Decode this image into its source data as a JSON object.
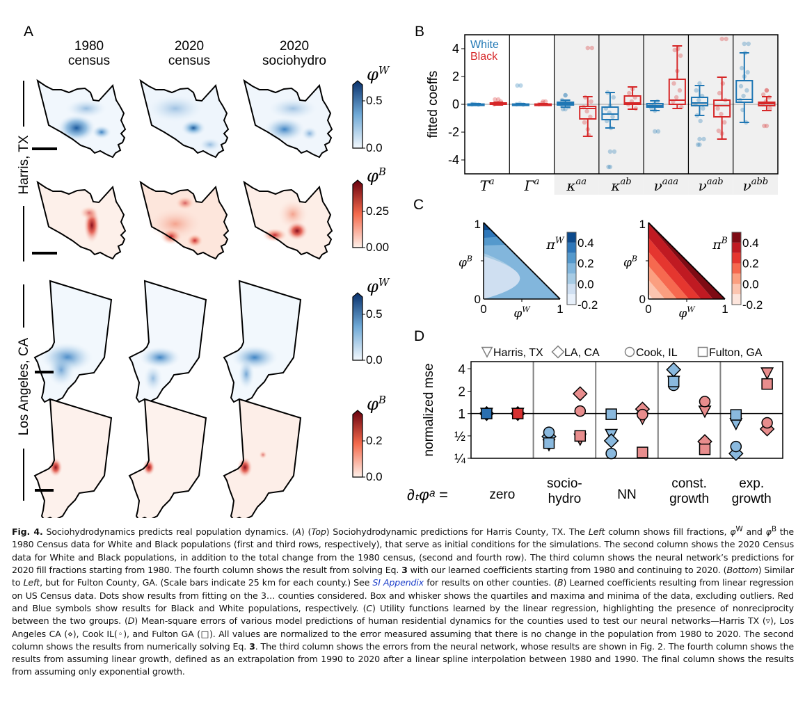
{
  "figure": {
    "panel_a": {
      "letter": "A",
      "column_titles": [
        {
          "line1": "1980",
          "line2": "census"
        },
        {
          "line1": "2020",
          "line2": "census"
        },
        {
          "line1": "2020",
          "line2": "sociohydro"
        }
      ],
      "row_groups": [
        {
          "label": "Harris, TX"
        },
        {
          "label": "Los Angeles, CA"
        }
      ],
      "colorbars": [
        {
          "symbol": "φ",
          "superscript": "W",
          "ticks": [
            "0.5",
            "0.0"
          ],
          "colormap": "Blues",
          "range": [
            0.0,
            0.7
          ]
        },
        {
          "symbol": "φ",
          "superscript": "B",
          "ticks": [
            "0.25",
            "0.00"
          ],
          "colormap": "Reds",
          "range": [
            0.0,
            0.4
          ]
        },
        {
          "symbol": "φ",
          "superscript": "W",
          "ticks": [
            "0.5",
            "0.0"
          ],
          "colormap": "Blues",
          "range": [
            0.0,
            0.7
          ]
        },
        {
          "symbol": "φ",
          "superscript": "B",
          "ticks": [
            "0.2",
            "0.0"
          ],
          "colormap": "Reds",
          "range": [
            0.0,
            0.35
          ]
        }
      ]
    },
    "panel_b": {
      "letter": "B"
    },
    "panel_c": {
      "letter": "C"
    },
    "panel_d": {
      "letter": "D"
    }
  },
  "chart_data": [
    {
      "id": "B",
      "type": "box",
      "title": "",
      "ylabel": "fitted coeffs",
      "ylim": [
        -5,
        5
      ],
      "yticks": [
        -4,
        -2,
        0,
        2,
        4
      ],
      "categories": [
        "T^a",
        "Γ^a",
        "κ^aa",
        "κ^ab",
        "ν^aaa",
        "ν^aab",
        "ν^abb"
      ],
      "category_labels": [
        {
          "base": "T",
          "sup": "a"
        },
        {
          "base": "Γ",
          "sup": "a"
        },
        {
          "base": "κ",
          "sup": "aa"
        },
        {
          "base": "κ",
          "sup": "ab"
        },
        {
          "base": "ν",
          "sup": "aaa"
        },
        {
          "base": "ν",
          "sup": "aab"
        },
        {
          "base": "ν",
          "sup": "abb"
        }
      ],
      "shaded_categories": [
        "κ^aa",
        "κ^ab",
        "ν^aaa",
        "ν^aab",
        "ν^abb"
      ],
      "legend": [
        {
          "name": "White",
          "color": "#1f77b4"
        },
        {
          "name": "Black",
          "color": "#d62728"
        }
      ],
      "legend_position": "top-left",
      "series": [
        {
          "name": "White",
          "color": "#1f77b4",
          "boxes": [
            {
              "min": -0.05,
              "q1": -0.02,
              "median": 0.0,
              "q3": 0.02,
              "max": 0.05,
              "outliers": []
            },
            {
              "min": -0.05,
              "q1": -0.02,
              "median": 0.0,
              "q3": 0.02,
              "max": 0.05,
              "outliers": [
                1.35
              ]
            },
            {
              "min": -0.2,
              "q1": -0.05,
              "median": 0.05,
              "q3": 0.15,
              "max": 0.3,
              "outliers": [
                0.65,
                -0.35
              ]
            },
            {
              "min": -1.7,
              "q1": -1.1,
              "median": -0.7,
              "q3": -0.2,
              "max": 0.85,
              "outliers": [
                -3.4,
                -4.5
              ]
            },
            {
              "min": -0.45,
              "q1": -0.2,
              "median": -0.1,
              "q3": 0.05,
              "max": 0.25,
              "outliers": [
                -1.95
              ]
            },
            {
              "min": -0.8,
              "q1": -0.1,
              "median": 0.1,
              "q3": 0.5,
              "max": 1.35,
              "outliers": [
                -2.5,
                -2.9
              ]
            },
            {
              "min": -1.3,
              "q1": 0.15,
              "median": 0.35,
              "q3": 1.7,
              "max": 3.7,
              "outliers": [
                4.35
              ]
            }
          ],
          "points": [
            [
              0.0,
              0.02,
              -0.02,
              0.01
            ],
            [
              0.0,
              0.05,
              -0.02,
              1.35
            ],
            [
              0.0,
              0.1,
              0.2,
              0.3,
              0.65,
              -0.2,
              -0.35
            ],
            [
              -0.3,
              -0.6,
              -0.9,
              -1.2,
              -0.1,
              0.5,
              0.85,
              -1.7,
              -3.4,
              -4.5
            ],
            [
              -0.1,
              0.0,
              0.2,
              -0.3,
              -0.45,
              -1.95
            ],
            [
              0.0,
              0.3,
              0.6,
              1.0,
              1.5,
              -0.3,
              -0.8,
              -1.2,
              -2.5,
              -2.9
            ],
            [
              0.3,
              0.6,
              1.0,
              1.3,
              2.0,
              2.3,
              2.6,
              3.7,
              4.35,
              -0.4,
              -1.3
            ]
          ]
        },
        {
          "name": "Black",
          "color": "#d62728",
          "boxes": [
            {
              "min": -0.05,
              "q1": 0.0,
              "median": 0.05,
              "q3": 0.1,
              "max": 0.15,
              "outliers": [
                0.35
              ]
            },
            {
              "min": -0.05,
              "q1": -0.02,
              "median": 0.0,
              "q3": 0.02,
              "max": 0.05,
              "outliers": [
                0.2
              ]
            },
            {
              "min": -2.3,
              "q1": -1.05,
              "median": -0.3,
              "q3": -0.15,
              "max": 0.55,
              "outliers": [
                4.05
              ]
            },
            {
              "min": -0.35,
              "q1": 0.0,
              "median": 0.1,
              "q3": 0.6,
              "max": 1.25,
              "outliers": []
            },
            {
              "min": -0.3,
              "q1": 0.0,
              "median": 0.3,
              "q3": 1.8,
              "max": 4.2,
              "outliers": []
            },
            {
              "min": -2.5,
              "q1": -0.9,
              "median": -0.1,
              "q3": 0.3,
              "max": 1.95,
              "outliers": [
                4.7
              ]
            },
            {
              "min": -0.45,
              "q1": -0.1,
              "median": 0.05,
              "q3": 0.15,
              "max": 0.55,
              "outliers": [
                1.0,
                -1.55
              ]
            }
          ],
          "points": [
            [
              0.0,
              0.1,
              0.2,
              0.35
            ],
            [
              0.0,
              0.1,
              0.2
            ],
            [
              -0.2,
              -0.5,
              -0.9,
              -1.3,
              -1.8,
              0.2,
              0.5,
              -2.2,
              4.05
            ],
            [
              0.0,
              0.2,
              0.5,
              0.8,
              1.1,
              -0.3
            ],
            [
              0.2,
              0.5,
              1.0,
              1.5,
              2.4,
              3.5,
              3.9,
              4.0,
              -0.2
            ],
            [
              -0.3,
              -0.7,
              -1.3,
              -1.9,
              -2.1,
              0.3,
              0.8,
              1.5,
              4.7
            ],
            [
              0.0,
              0.2,
              0.5,
              0.7,
              1.0,
              -0.3,
              -1.55
            ]
          ]
        }
      ]
    },
    {
      "id": "C-left",
      "type": "heatmap",
      "title": "",
      "xlabel": "φ^W",
      "ylabel": "φ^B",
      "xlim": [
        0,
        1
      ],
      "ylim": [
        0,
        1
      ],
      "xticks": [
        "0",
        "1"
      ],
      "yticks": [
        "0",
        "1"
      ],
      "colorbar_label": "π^W",
      "colorbar_ticks": [
        "0.4",
        "0.2",
        "0.0",
        "-0.2"
      ],
      "colorbar_range": [
        -0.2,
        0.5
      ],
      "levels": [
        -0.2,
        -0.1,
        0.0,
        0.1,
        0.2,
        0.3,
        0.4,
        0.5
      ],
      "colors": [
        "#e8f0fa",
        "#cfdff1",
        "#a7cbe4",
        "#82b6dc",
        "#5599cc",
        "#2e77b9",
        "#0d4a8c"
      ]
    },
    {
      "id": "C-right",
      "type": "heatmap",
      "title": "",
      "xlabel": "φ^W",
      "ylabel": "φ^B",
      "xlim": [
        0,
        1
      ],
      "ylim": [
        0,
        1
      ],
      "xticks": [
        "0",
        "1"
      ],
      "yticks": [
        "0",
        "1"
      ],
      "colorbar_label": "π^B",
      "colorbar_ticks": [
        "0.4",
        "0.2",
        "0.0",
        "-0.2"
      ],
      "colorbar_range": [
        -0.2,
        0.5
      ],
      "levels": [
        -0.2,
        -0.1,
        0.0,
        0.1,
        0.2,
        0.3,
        0.4,
        0.5
      ],
      "colors": [
        "#fde5dc",
        "#fcc5b0",
        "#fb9f80",
        "#f6694f",
        "#e5362f",
        "#c01a22",
        "#7e0b14"
      ]
    },
    {
      "id": "D",
      "type": "scatter",
      "title": "",
      "ylabel": "normalized mse",
      "yscale": "log2",
      "ylim": [
        0.25,
        5
      ],
      "yticks": [
        "4",
        "2",
        "1",
        "½",
        "¼"
      ],
      "ytick_values": [
        4,
        2,
        1,
        0.5,
        0.25
      ],
      "x_prefix_label": "∂ₜφᵃ =",
      "categories": [
        "zero",
        "socio-\nhydro",
        "NN",
        "const.\ngrowth",
        "exp.\ngrowth"
      ],
      "category_lines": [
        [
          "zero"
        ],
        [
          "socio-",
          "hydro"
        ],
        [
          "NN"
        ],
        [
          "const.",
          "growth"
        ],
        [
          "exp.",
          "growth"
        ]
      ],
      "legend": [
        {
          "name": "Harris, TX",
          "marker": "triangle-down"
        },
        {
          "name": "LA, CA",
          "marker": "diamond"
        },
        {
          "name": "Cook, IL",
          "marker": "circle"
        },
        {
          "name": "Fulton, GA",
          "marker": "square"
        }
      ],
      "legend_position": "top",
      "reference_line": 1,
      "series": [
        {
          "group": "White",
          "color": "#8ab9de",
          "points": [
            {
              "category": 0,
              "county": "Harris, TX",
              "value": 1.0
            },
            {
              "category": 0,
              "county": "LA, CA",
              "value": 1.0
            },
            {
              "category": 0,
              "county": "Cook, IL",
              "value": 1.0
            },
            {
              "category": 0,
              "county": "Fulton, GA",
              "value": 1.0
            },
            {
              "category": 1,
              "county": "Harris, TX",
              "value": 0.38
            },
            {
              "category": 1,
              "county": "LA, CA",
              "value": 0.49
            },
            {
              "category": 1,
              "county": "Cook, IL",
              "value": 0.56
            },
            {
              "category": 1,
              "county": "Fulton, GA",
              "value": 0.4
            },
            {
              "category": 2,
              "county": "Harris, TX",
              "value": 0.52
            },
            {
              "category": 2,
              "county": "LA, CA",
              "value": 0.43
            },
            {
              "category": 2,
              "county": "Cook, IL",
              "value": 0.29
            },
            {
              "category": 2,
              "county": "Fulton, GA",
              "value": 0.98
            },
            {
              "category": 3,
              "county": "Harris, TX",
              "value": 2.7
            },
            {
              "category": 3,
              "county": "LA, CA",
              "value": 3.9
            },
            {
              "category": 3,
              "county": "Cook, IL",
              "value": 2.4
            },
            {
              "category": 3,
              "county": "Fulton, GA",
              "value": 2.7
            },
            {
              "category": 4,
              "county": "Harris, TX",
              "value": 0.73
            },
            {
              "category": 4,
              "county": "LA, CA",
              "value": 0.29
            },
            {
              "category": 4,
              "county": "Cook, IL",
              "value": 0.36
            },
            {
              "category": 4,
              "county": "Fulton, GA",
              "value": 0.96
            }
          ]
        },
        {
          "group": "Black",
          "color": "#e88d8d",
          "points": [
            {
              "category": 0,
              "county": "Harris, TX",
              "value": 1.0
            },
            {
              "category": 0,
              "county": "LA, CA",
              "value": 1.0
            },
            {
              "category": 0,
              "county": "Cook, IL",
              "value": 1.0
            },
            {
              "category": 0,
              "county": "Fulton, GA",
              "value": 1.0
            },
            {
              "category": 1,
              "county": "Harris, TX",
              "value": 0.45
            },
            {
              "category": 1,
              "county": "LA, CA",
              "value": 1.85
            },
            {
              "category": 1,
              "county": "Cook, IL",
              "value": 1.08
            },
            {
              "category": 1,
              "county": "Fulton, GA",
              "value": 0.5
            },
            {
              "category": 2,
              "county": "Harris, TX",
              "value": 0.86
            },
            {
              "category": 2,
              "county": "LA, CA",
              "value": 1.15
            },
            {
              "category": 2,
              "county": "Cook, IL",
              "value": 0.97
            },
            {
              "category": 2,
              "county": "Fulton, GA",
              "value": 0.3
            },
            {
              "category": 3,
              "county": "Harris, TX",
              "value": 1.07
            },
            {
              "category": 3,
              "county": "LA, CA",
              "value": 0.42
            },
            {
              "category": 3,
              "county": "Cook, IL",
              "value": 1.45
            },
            {
              "category": 3,
              "county": "Fulton, GA",
              "value": 0.33
            },
            {
              "category": 4,
              "county": "Harris, TX",
              "value": 3.5
            },
            {
              "category": 4,
              "county": "LA, CA",
              "value": 0.62
            },
            {
              "category": 4,
              "county": "Cook, IL",
              "value": 0.75
            },
            {
              "category": 4,
              "county": "Fulton, GA",
              "value": 2.5
            }
          ]
        }
      ]
    }
  ],
  "caption": {
    "label": "Fig. 4.",
    "segments": [
      {
        "t": "  Sociohydrodynamics predicts real population dynamics. ("
      },
      {
        "t": "A",
        "i": true
      },
      {
        "t": ") ("
      },
      {
        "t": "Top",
        "i": true
      },
      {
        "t": ") Sociohydrodynamic predictions for Harris County, TX. The "
      },
      {
        "t": "Left",
        "i": true
      },
      {
        "t": " column shows fill fractions, "
      },
      {
        "t": "φ",
        "i": true
      },
      {
        "t": "W",
        "sup": true
      },
      {
        "t": " and "
      },
      {
        "t": "φ",
        "i": true
      },
      {
        "t": "B",
        "sup": true
      },
      {
        "t": " the 1980 Census data for White and Black populations (first and third rows, respectively), that serve as initial conditions for the simulations. The second column shows the 2020 Census data for White and Black populations, in addition to the total change from the 1980 census, (second and fourth row). The third column shows the neural network’s predictions for 2020 fill fractions starting from 1980. The fourth column shows the result from solving Eq. "
      },
      {
        "t": "3",
        "b": true
      },
      {
        "t": " with our learned coefficients starting from 1980 and continuing to 2020. ("
      },
      {
        "t": "Bottom",
        "i": true
      },
      {
        "t": ") Similar to "
      },
      {
        "t": "Left",
        "i": true
      },
      {
        "t": ", but for Fulton County, GA. (Scale bars indicate 25 km for each county.) See "
      },
      {
        "t": "SI Appendix",
        "link": true
      },
      {
        "t": " for results on other counties. ("
      },
      {
        "t": "B",
        "i": true
      },
      {
        "t": ") Learned coefficients resulting from linear regression on US Census data. Dots show results from fitting on the 3… counties considered. Box and whisker shows the quartiles and maxima and minima of the data, excluding outliers. Red and Blue symbols show results for Black and White populations, respectively. ("
      },
      {
        "t": "C",
        "i": true
      },
      {
        "t": ") Utility functions learned by the linear regression, highlighting the presence of nonreciprocity between the two groups. ("
      },
      {
        "t": "D",
        "i": true
      },
      {
        "t": ") Mean-square errors of various model predictions of human residential dynamics for the counties used to test our neural networks—Harris TX (▿), Los Angeles CA (⋄), Cook IL(◦), and Fulton GA (□). All values are normalized to the error measured assuming that there is no change in the population from 1980 to 2020. The second column shows the results from numerically solving Eq. "
      },
      {
        "t": "3",
        "b": true
      },
      {
        "t": ". The third column shows the errors from the neural network, whose results are shown in Fig. 2. The fourth column shows the results from assuming linear growth, defined as an extrapolation from 1990 to 2020 after a linear spline interpolation between 1980 and 1990. The final column shows the results from assuming only exponential growth."
      }
    ]
  }
}
